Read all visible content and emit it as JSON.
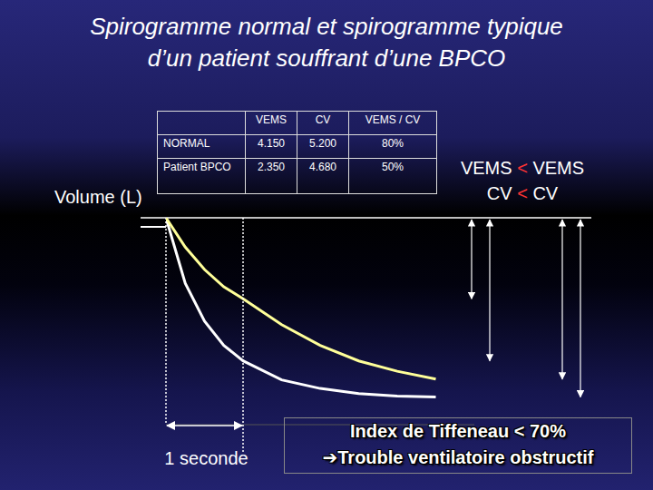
{
  "title": [
    "Spirogramme normal et spirogramme typique",
    "d’un patient souffrant d’une BPCO"
  ],
  "table": {
    "header": [
      "VEMS",
      "CV",
      "VEMS / CV"
    ],
    "rows": [
      [
        "4.150",
        "5.200",
        "80%"
      ],
      [
        "2.350",
        "4.680",
        "50%"
      ]
    ]
  },
  "comparison": [
    {
      "left": "VEMS",
      "sign": "<",
      "right": "VEMS"
    },
    {
      "left": "CV",
      "sign": "<",
      "right": "CV"
    }
  ],
  "conclusion": [
    "Index de Tiffeneau < 70%",
    "➔Trouble ventilatoire obstructif"
  ],
  "chart_data": {
    "type": "line",
    "y_label": "Volume (L)",
    "x": [
      0,
      0.25,
      0.5,
      0.75,
      1,
      1.5,
      2,
      2.5,
      3,
      3.5
    ],
    "series": [
      {
        "name": "NORMAL",
        "color": "#ffffff",
        "values": [
          0,
          1.9,
          3.0,
          3.7,
          4.15,
          4.7,
          4.95,
          5.1,
          5.17,
          5.2
        ]
      },
      {
        "name": "Patient BPCO",
        "color": "#ffff99",
        "values": [
          0,
          0.85,
          1.5,
          2.0,
          2.35,
          3.1,
          3.7,
          4.15,
          4.45,
          4.68
        ]
      }
    ],
    "xlim": [
      0,
      4
    ],
    "ylim": [
      0,
      6
    ],
    "tick_labels": false,
    "grid": false,
    "annotations": [
      {
        "text": "1 seconde",
        "x": 1
      }
    ]
  }
}
